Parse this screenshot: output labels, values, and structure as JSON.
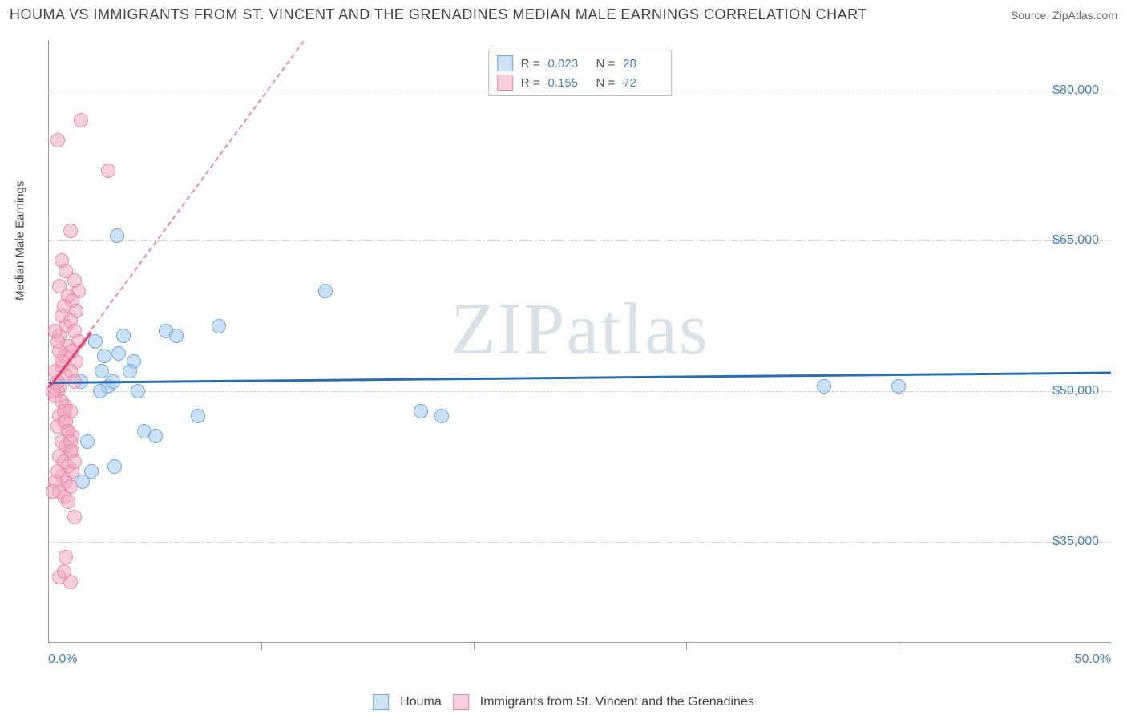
{
  "title": "HOUMA VS IMMIGRANTS FROM ST. VINCENT AND THE GRENADINES MEDIAN MALE EARNINGS CORRELATION CHART",
  "source": "Source: ZipAtlas.com",
  "watermark": "ZIPatlas",
  "chart": {
    "type": "scatter",
    "y_axis_title": "Median Male Earnings",
    "xlim": [
      0,
      50
    ],
    "ylim": [
      25000,
      85000
    ],
    "xticks": [
      {
        "pos": 0,
        "label": "0.0%"
      },
      {
        "pos": 50,
        "label": "50.0%"
      }
    ],
    "xtick_marks": [
      10,
      20,
      30,
      40
    ],
    "yticks": [
      {
        "pos": 35000,
        "label": "$35,000"
      },
      {
        "pos": 50000,
        "label": "$50,000"
      },
      {
        "pos": 65000,
        "label": "$65,000"
      },
      {
        "pos": 80000,
        "label": "$80,000"
      }
    ],
    "grid_color": "#cccccc",
    "background_color": "#ffffff",
    "legend_top": [
      {
        "swatch_fill": "#cfe2f3",
        "swatch_border": "#6fa8dc",
        "r_label": "R =",
        "r_val": "0.023",
        "n_label": "N =",
        "n_val": "28"
      },
      {
        "swatch_fill": "#f8d0dc",
        "swatch_border": "#e58aa8",
        "r_label": "R =",
        "r_val": "0.155",
        "n_label": "N =",
        "n_val": "72"
      }
    ],
    "legend_bottom": [
      {
        "swatch_fill": "#cfe2f3",
        "swatch_border": "#6fa8dc",
        "label": "Houma"
      },
      {
        "swatch_fill": "#f8d0dc",
        "swatch_border": "#e58aa8",
        "label": "Immigrants from St. Vincent and the Grenadines"
      }
    ],
    "series": [
      {
        "name": "Houma",
        "fill": "rgba(160,200,240,0.55)",
        "stroke": "#6fa8dc",
        "marker_size": 18,
        "trend_color": "#2b6cb0",
        "trend": {
          "x1": 0,
          "y1": 51000,
          "x2": 50,
          "y2": 52000
        },
        "points": [
          [
            3.2,
            65500
          ],
          [
            2.0,
            42000
          ],
          [
            2.8,
            50500
          ],
          [
            3.5,
            55500
          ],
          [
            5.5,
            56000
          ],
          [
            4.0,
            53000
          ],
          [
            3.0,
            51000
          ],
          [
            6.0,
            55500
          ],
          [
            8.0,
            56500
          ],
          [
            7.0,
            47500
          ],
          [
            4.5,
            46000
          ],
          [
            5.0,
            45500
          ],
          [
            4.2,
            50000
          ],
          [
            13.0,
            60000
          ],
          [
            17.5,
            48000
          ],
          [
            18.5,
            47500
          ],
          [
            2.5,
            52000
          ],
          [
            3.3,
            53800
          ],
          [
            36.5,
            50500
          ],
          [
            40.0,
            50500
          ],
          [
            1.8,
            45000
          ],
          [
            1.5,
            51000
          ],
          [
            2.2,
            55000
          ],
          [
            2.6,
            53500
          ],
          [
            3.1,
            42500
          ],
          [
            1.6,
            41000
          ],
          [
            2.4,
            50000
          ],
          [
            3.8,
            52000
          ]
        ]
      },
      {
        "name": "Immigrants",
        "fill": "rgba(240,170,195,0.55)",
        "stroke": "#e58aa8",
        "marker_size": 18,
        "trend_color": "#d64577",
        "trend": {
          "x1": 0,
          "y1": 50500,
          "x2": 2.0,
          "y2": 56000
        },
        "trend_dashed": {
          "x1": 0,
          "y1": 50500,
          "x2": 12,
          "y2": 85000
        },
        "points": [
          [
            1.5,
            77000
          ],
          [
            0.4,
            75000
          ],
          [
            2.8,
            72000
          ],
          [
            1.0,
            66000
          ],
          [
            0.6,
            63000
          ],
          [
            0.8,
            62000
          ],
          [
            1.2,
            61000
          ],
          [
            0.5,
            60500
          ],
          [
            1.4,
            60000
          ],
          [
            0.9,
            59500
          ],
          [
            1.1,
            59000
          ],
          [
            0.7,
            58500
          ],
          [
            1.3,
            58000
          ],
          [
            0.6,
            57500
          ],
          [
            1.0,
            57000
          ],
          [
            0.8,
            56500
          ],
          [
            1.2,
            56000
          ],
          [
            0.5,
            55500
          ],
          [
            1.4,
            55000
          ],
          [
            0.9,
            54500
          ],
          [
            1.1,
            54000
          ],
          [
            0.7,
            53500
          ],
          [
            1.3,
            53000
          ],
          [
            0.6,
            52500
          ],
          [
            1.0,
            52000
          ],
          [
            0.8,
            51500
          ],
          [
            1.2,
            51000
          ],
          [
            0.5,
            50500
          ],
          [
            0.4,
            50000
          ],
          [
            0.3,
            49500
          ],
          [
            0.6,
            49000
          ],
          [
            0.8,
            48500
          ],
          [
            1.0,
            48000
          ],
          [
            0.5,
            47500
          ],
          [
            0.7,
            47000
          ],
          [
            0.4,
            46500
          ],
          [
            0.9,
            46000
          ],
          [
            1.1,
            45500
          ],
          [
            0.6,
            45000
          ],
          [
            0.8,
            44500
          ],
          [
            1.0,
            44000
          ],
          [
            0.5,
            43500
          ],
          [
            0.7,
            43000
          ],
          [
            0.9,
            42500
          ],
          [
            1.1,
            42000
          ],
          [
            0.6,
            41500
          ],
          [
            0.8,
            41000
          ],
          [
            1.0,
            40500
          ],
          [
            0.5,
            40000
          ],
          [
            0.7,
            39500
          ],
          [
            0.9,
            39000
          ],
          [
            1.2,
            37500
          ],
          [
            0.8,
            33500
          ],
          [
            1.0,
            31000
          ],
          [
            0.5,
            31500
          ],
          [
            0.7,
            32000
          ],
          [
            0.4,
            51000
          ],
          [
            0.3,
            52000
          ],
          [
            0.2,
            50000
          ],
          [
            0.6,
            53000
          ],
          [
            0.5,
            54000
          ],
          [
            0.4,
            55000
          ],
          [
            0.3,
            56000
          ],
          [
            0.7,
            48000
          ],
          [
            0.8,
            47000
          ],
          [
            0.9,
            46000
          ],
          [
            1.0,
            45000
          ],
          [
            1.1,
            44000
          ],
          [
            1.2,
            43000
          ],
          [
            0.4,
            42000
          ],
          [
            0.3,
            41000
          ],
          [
            0.2,
            40000
          ]
        ]
      }
    ]
  }
}
